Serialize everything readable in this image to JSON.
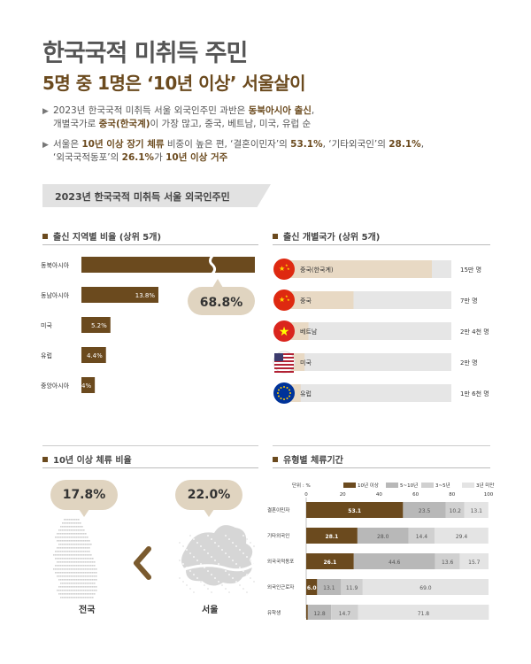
{
  "header": {
    "title": "한국국적 미취득 주민",
    "subtitle": "5명 중 1명은 ‘10년 이상’ 서울살이",
    "bullets": [
      {
        "lines": [
          [
            {
              "t": "2023년 한국국적 미취득 서울 외국인주민 과반은 "
            },
            {
              "t": "동북아시아 출신",
              "h": true
            },
            {
              "t": ","
            }
          ],
          [
            {
              "t": "개별국가로 "
            },
            {
              "t": "중국(한국계)",
              "h": true
            },
            {
              "t": "이 가장 많고, 중국, 베트남, 미국, 유럽 순"
            }
          ]
        ]
      },
      {
        "lines": [
          [
            {
              "t": "서울은 "
            },
            {
              "t": "10년 이상 장기 체류",
              "h": true
            },
            {
              "t": " 비중이 높은 편, ‘결혼이민자’의 "
            },
            {
              "t": "53.1%",
              "h": true
            },
            {
              "t": ", ‘기타외국인’의 "
            },
            {
              "t": "28.1%",
              "h": true
            },
            {
              "t": ","
            }
          ],
          [
            {
              "t": "‘외국국적동포’의 "
            },
            {
              "t": "26.1%",
              "h": true
            },
            {
              "t": "가 "
            },
            {
              "t": "10년 이상 거주",
              "h": true
            }
          ]
        ]
      }
    ]
  },
  "banner": "2023년 한국국적 미취득 서울 외국인주민",
  "sections": {
    "region": "출신 지역별 비율 (상위 5개)",
    "country": "출신 개별국가 (상위 5개)",
    "long_stay": "10년 이상 체류 비율",
    "duration": "유형별 체류기간"
  },
  "colors": {
    "brown": "#6b4a1e",
    "tan": "#e8d9c4",
    "gray_bar": "#e6e6e6",
    "gray1": "#b8b8b8",
    "gray2": "#d0d0d0",
    "gray3": "#e4e4e4",
    "map_dot": "#cfcfcf"
  },
  "chart_data": [
    {
      "type": "bar",
      "orientation": "horizontal",
      "categories": [
        "동북아시아",
        "동남아시아",
        "미국",
        "유럽",
        "중앙아시아"
      ],
      "values": [
        68.8,
        13.8,
        5.2,
        4.4,
        2.4
      ],
      "value_labels": [
        "68.8%",
        "13.8%",
        "5.2%",
        "4.4%",
        "2.4%"
      ],
      "axis_break": true
    },
    {
      "type": "bar",
      "orientation": "horizontal",
      "categories": [
        "중국(한국계)",
        "중국",
        "베트남",
        "미국",
        "유럽"
      ],
      "icons": [
        "china-flag-icon",
        "china-flag-icon",
        "vietnam-flag-icon",
        "usa-flag-icon",
        "eu-flag-icon"
      ],
      "values": [
        150000,
        70000,
        24000,
        20000,
        16000
      ],
      "value_labels": [
        "15만 명",
        "7만 명",
        "2만 4천 명",
        "2만 명",
        "1만 6천 명"
      ],
      "xlim": [
        0,
        150000
      ]
    },
    {
      "type": "bar",
      "categories": [
        "전국",
        "서울"
      ],
      "values": [
        17.8,
        22.0
      ],
      "value_labels": [
        "17.8%",
        "22.0%"
      ]
    },
    {
      "type": "bar",
      "stacked": true,
      "orientation": "horizontal",
      "unit_label": "단위 : %",
      "categories": [
        "결혼이민자",
        "기타외국인",
        "외국국적동포",
        "외국인근로자",
        "유학생"
      ],
      "series": [
        {
          "name": "10년 이상",
          "values": [
            53.1,
            28.1,
            26.1,
            6.0,
            0.9
          ],
          "labels": [
            "53.1",
            "28.1",
            "26.1",
            "6.0",
            "0.9"
          ]
        },
        {
          "name": "5~10년",
          "values": [
            23.5,
            28.0,
            44.6,
            13.1,
            12.8
          ],
          "labels": [
            "23.5",
            "28.0",
            "44.6",
            "13.1",
            "12.8"
          ]
        },
        {
          "name": "3~5년",
          "values": [
            10.2,
            14.4,
            13.6,
            11.9,
            14.7
          ],
          "labels": [
            "10.2",
            "14.4",
            "13.6",
            "11.9",
            "14.7"
          ]
        },
        {
          "name": "3년 미만",
          "values": [
            13.1,
            29.4,
            15.7,
            69.0,
            71.8
          ],
          "labels": [
            "13.1",
            "29.4",
            "15.7",
            "69.0",
            "71.8"
          ]
        }
      ],
      "xticks": [
        "0",
        "20",
        "40",
        "60",
        "80",
        "100"
      ],
      "xlim": [
        0,
        100
      ]
    }
  ]
}
